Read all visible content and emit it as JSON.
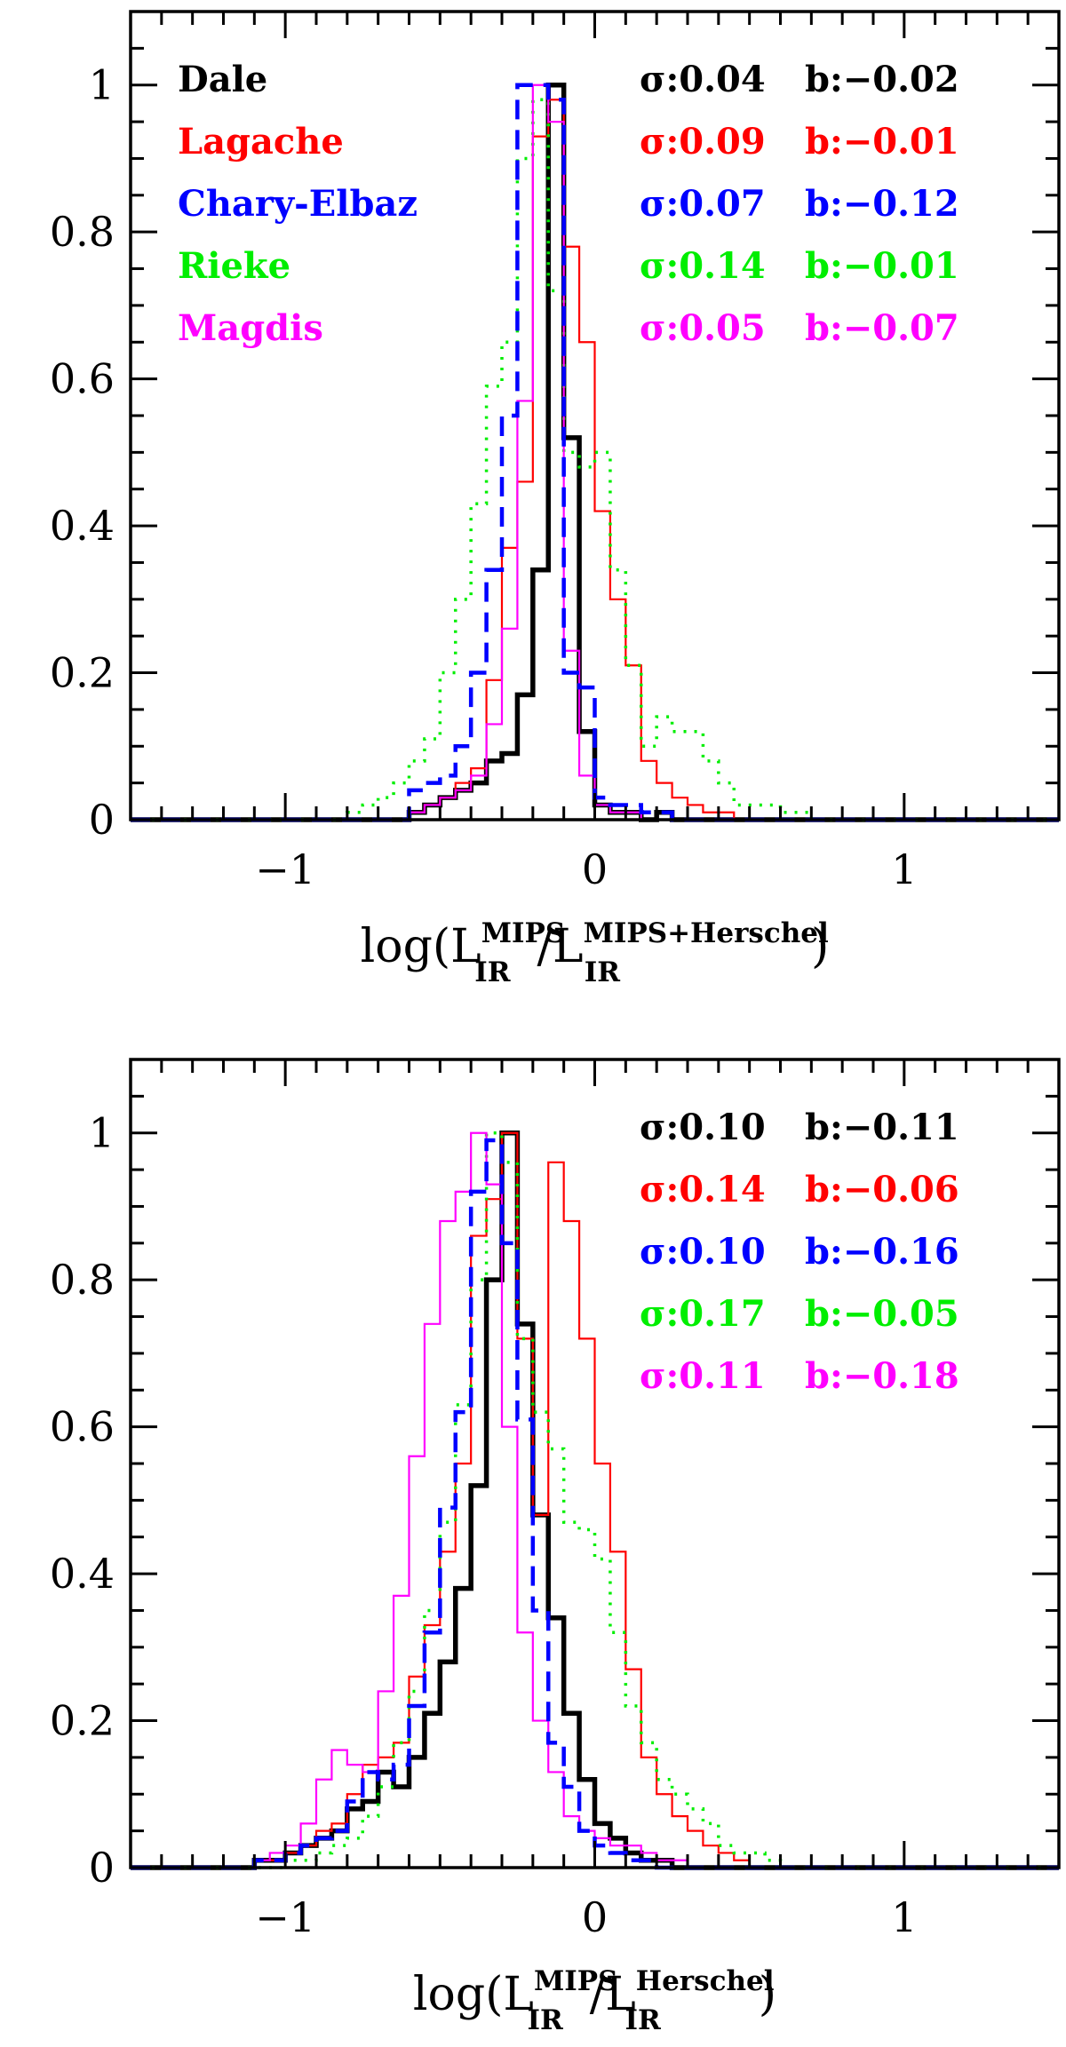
{
  "chart_data": [
    {
      "type": "line",
      "title": "",
      "xlabel": {
        "prefix": "log(L",
        "sup1": "MIPS",
        "sub1": "IR",
        "mid": "/L",
        "sup2": "MIPS+Herschel",
        "sub2": "IR",
        "suffix": ")"
      },
      "ylabel": "",
      "xlim": [
        -1.5,
        1.5
      ],
      "ylim": [
        0,
        1.1
      ],
      "xticks": [
        -1,
        0,
        1
      ],
      "xtick_labels": [
        "−1",
        "0",
        "1"
      ],
      "yticks": [
        0,
        0.2,
        0.4,
        0.6,
        0.8,
        1
      ],
      "ytick_labels": [
        "0",
        "0.2",
        "0.4",
        "0.6",
        "0.8",
        "1"
      ],
      "bin_width": 0.05,
      "grid": false,
      "legend_placement": "top-left",
      "series": [
        {
          "name": "Dale",
          "color": "#000000",
          "style": "solid-thick",
          "stat_sigma": "σ:0.04",
          "stat_b": "b:−0.02",
          "bins_start": -0.6,
          "values": [
            0.01,
            0.02,
            0.03,
            0.04,
            0.05,
            0.08,
            0.09,
            0.17,
            0.34,
            1.0,
            0.52,
            0.12,
            0.02,
            0.01,
            0.01,
            0.0,
            0.01,
            0.0
          ]
        },
        {
          "name": "Lagache",
          "color": "#ff0000",
          "style": "solid-thin",
          "stat_sigma": "σ:0.09",
          "stat_b": "b:−0.01",
          "bins_start": -0.6,
          "values": [
            0.01,
            0.02,
            0.03,
            0.05,
            0.07,
            0.19,
            0.37,
            0.46,
            0.93,
            0.98,
            0.78,
            0.65,
            0.42,
            0.3,
            0.21,
            0.08,
            0.05,
            0.03,
            0.02,
            0.01,
            0.01
          ]
        },
        {
          "name": "Chary-Elbaz",
          "color": "#0000ff",
          "style": "dashed",
          "stat_sigma": "σ:0.07",
          "stat_b": "b:−0.12",
          "bins_start": -0.6,
          "values": [
            0.04,
            0.05,
            0.06,
            0.1,
            0.2,
            0.34,
            0.55,
            1.0,
            1.0,
            0.98,
            0.2,
            0.18,
            0.03,
            0.02,
            0.02,
            0.01,
            0.01,
            0.0
          ]
        },
        {
          "name": "Rieke",
          "color": "#00ee00",
          "style": "dotted",
          "stat_sigma": "σ:0.14",
          "stat_b": "b:−0.01",
          "bins_start": -0.8,
          "values": [
            0.01,
            0.02,
            0.03,
            0.05,
            0.08,
            0.11,
            0.2,
            0.3,
            0.43,
            0.59,
            0.65,
            0.9,
            0.98,
            0.72,
            0.5,
            0.48,
            0.5,
            0.34,
            0.21,
            0.1,
            0.14,
            0.12,
            0.12,
            0.08,
            0.05,
            0.02,
            0.02,
            0.02,
            0.01,
            0.01
          ]
        },
        {
          "name": "Magdis",
          "color": "#ff00ff",
          "style": "solid-thin",
          "stat_sigma": "σ:0.05",
          "stat_b": "b:−0.07",
          "bins_start": -0.6,
          "values": [
            0.01,
            0.02,
            0.03,
            0.04,
            0.06,
            0.13,
            0.26,
            0.57,
            1.0,
            0.95,
            0.23,
            0.06,
            0.02,
            0.01,
            0.01,
            0.0
          ]
        }
      ]
    },
    {
      "type": "line",
      "title": "",
      "xlabel": {
        "prefix": "log(L",
        "sup1": "MIPS",
        "sub1": "IR",
        "mid": "/L",
        "sup2": "Herschel",
        "sub2": "IR",
        "suffix": ")"
      },
      "ylabel": "",
      "xlim": [
        -1.5,
        1.5
      ],
      "ylim": [
        0,
        1.1
      ],
      "xticks": [
        -1,
        0,
        1
      ],
      "xtick_labels": [
        "−1",
        "0",
        "1"
      ],
      "yticks": [
        0,
        0.2,
        0.4,
        0.6,
        0.8,
        1
      ],
      "ytick_labels": [
        "0",
        "0.2",
        "0.4",
        "0.6",
        "0.8",
        "1"
      ],
      "bin_width": 0.05,
      "grid": false,
      "legend_placement": "top-right",
      "series": [
        {
          "name": "Dale",
          "color": "#000000",
          "style": "solid-thick",
          "stat_sigma": "σ:0.10",
          "stat_b": "b:−0.11",
          "bins_start": -1.1,
          "values": [
            0.01,
            0.01,
            0.02,
            0.03,
            0.04,
            0.05,
            0.08,
            0.09,
            0.13,
            0.11,
            0.15,
            0.21,
            0.28,
            0.38,
            0.52,
            0.8,
            1.0,
            0.74,
            0.48,
            0.34,
            0.21,
            0.12,
            0.06,
            0.04,
            0.02,
            0.01,
            0.01
          ]
        },
        {
          "name": "Lagache",
          "color": "#ff0000",
          "style": "solid-thin",
          "stat_sigma": "σ:0.14",
          "stat_b": "b:−0.06",
          "bins_start": -1.1,
          "values": [
            0.01,
            0.01,
            0.02,
            0.03,
            0.05,
            0.06,
            0.1,
            0.14,
            0.15,
            0.17,
            0.26,
            0.33,
            0.43,
            0.55,
            0.86,
            0.91,
            1.0,
            0.72,
            0.48,
            0.96,
            0.88,
            0.72,
            0.55,
            0.43,
            0.27,
            0.15,
            0.1,
            0.07,
            0.05,
            0.03,
            0.02,
            0.01
          ]
        },
        {
          "name": "Chary-Elbaz",
          "color": "#0000ff",
          "style": "dashed",
          "stat_sigma": "σ:0.10",
          "stat_b": "b:−0.16",
          "bins_start": -1.1,
          "values": [
            0.01,
            0.01,
            0.02,
            0.03,
            0.04,
            0.05,
            0.09,
            0.13,
            0.12,
            0.14,
            0.22,
            0.32,
            0.49,
            0.62,
            0.92,
            0.99,
            0.85,
            0.61,
            0.35,
            0.17,
            0.11,
            0.05,
            0.03,
            0.02,
            0.01,
            0.01
          ]
        },
        {
          "name": "Rieke",
          "color": "#00ee00",
          "style": "dotted",
          "stat_sigma": "σ:0.17",
          "stat_b": "b:−0.05",
          "bins_start": -1.0,
          "values": [
            0.01,
            0.01,
            0.02,
            0.03,
            0.04,
            0.07,
            0.11,
            0.17,
            0.24,
            0.35,
            0.47,
            0.63,
            0.8,
            1.0,
            0.96,
            0.72,
            0.62,
            0.57,
            0.47,
            0.46,
            0.42,
            0.32,
            0.22,
            0.17,
            0.12,
            0.1,
            0.08,
            0.06,
            0.03,
            0.02,
            0.02,
            0.01
          ]
        },
        {
          "name": "Magdis",
          "color": "#ff00ff",
          "style": "solid-thin",
          "stat_sigma": "σ:0.11",
          "stat_b": "b:−0.18",
          "bins_start": -1.1,
          "values": [
            0.01,
            0.02,
            0.03,
            0.06,
            0.12,
            0.16,
            0.14,
            0.13,
            0.24,
            0.37,
            0.56,
            0.74,
            0.88,
            0.92,
            1.0,
            0.93,
            0.6,
            0.32,
            0.2,
            0.13,
            0.07,
            0.05,
            0.04,
            0.03,
            0.03,
            0.02,
            0.01,
            0.01
          ]
        }
      ]
    }
  ]
}
